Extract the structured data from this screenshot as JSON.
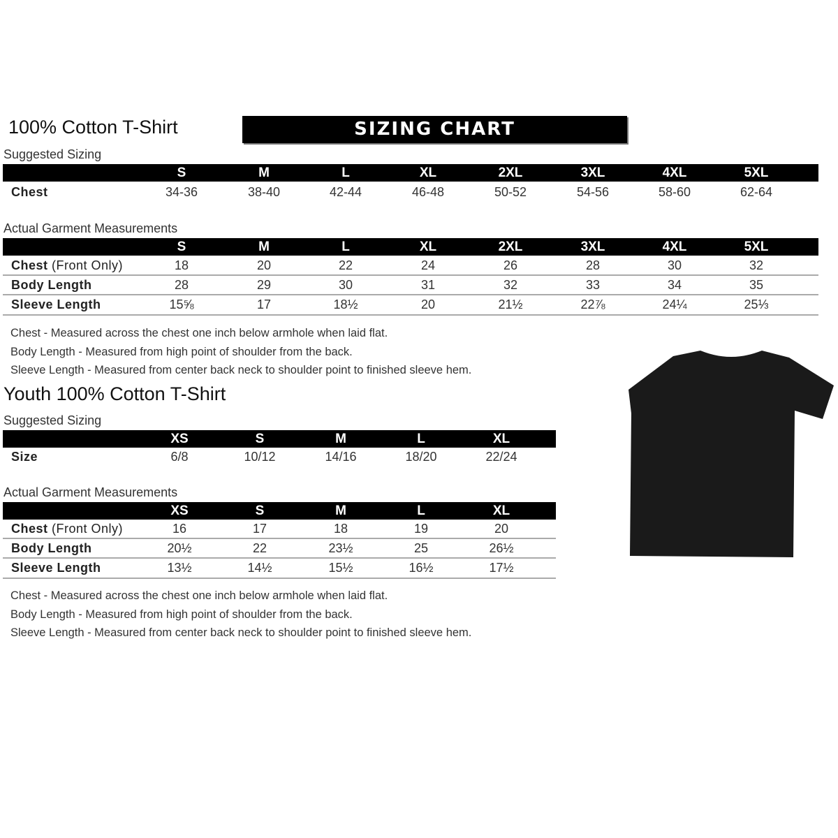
{
  "adult": {
    "title": "100% Cotton T-Shirt",
    "banner": "SIZING CHART",
    "suggested_label": "Suggested Sizing",
    "sizes": [
      "S",
      "M",
      "L",
      "XL",
      "2XL",
      "3XL",
      "4XL",
      "5XL"
    ],
    "suggested_rows": [
      {
        "label": "Chest",
        "values": [
          "34-36",
          "38-40",
          "42-44",
          "46-48",
          "50-52",
          "54-56",
          "58-60",
          "62-64"
        ]
      }
    ],
    "actual_label": "Actual Garment Measurements",
    "actual_rows": [
      {
        "label": "Chest",
        "label_suffix": " (Front Only)",
        "values": [
          "18",
          "20",
          "22",
          "24",
          "26",
          "28",
          "30",
          "32"
        ]
      },
      {
        "label": "Body Length",
        "values": [
          "28",
          "29",
          "30",
          "31",
          "32",
          "33",
          "34",
          "35"
        ]
      },
      {
        "label": "Sleeve Length",
        "values": [
          "15⅝",
          "17",
          "18½",
          "20",
          "21½",
          "22⅞",
          "24¼",
          "25⅓"
        ]
      }
    ],
    "notes": [
      "Chest - Measured across the chest one inch below armhole when laid flat.",
      "Body Length - Measured from high point of shoulder from the back.",
      "Sleeve Length - Measured from center back neck to shoulder point to finished sleeve hem."
    ]
  },
  "youth": {
    "title": "Youth 100% Cotton T-Shirt",
    "suggested_label": "Suggested Sizing",
    "sizes": [
      "XS",
      "S",
      "M",
      "L",
      "XL"
    ],
    "suggested_rows": [
      {
        "label": "Size",
        "values": [
          "6/8",
          "10/12",
          "14/16",
          "18/20",
          "22/24"
        ]
      }
    ],
    "actual_label": "Actual Garment Measurements",
    "actual_rows": [
      {
        "label": "Chest",
        "label_suffix": " (Front Only)",
        "values": [
          "16",
          "17",
          "18",
          "19",
          "20"
        ]
      },
      {
        "label": "Body Length",
        "values": [
          "20½",
          "22",
          "23½",
          "25",
          "26½"
        ]
      },
      {
        "label": "Sleeve Length",
        "values": [
          "13½",
          "14½",
          "15½",
          "16½",
          "17½"
        ]
      }
    ],
    "notes": [
      "Chest - Measured across the chest one inch below armhole when laid flat.",
      "Body Length - Measured from high point of shoulder from the back.",
      "Sleeve Length - Measured from center back neck to shoulder point to finished sleeve hem."
    ]
  },
  "image": {
    "icon": "black-tshirt-icon",
    "color": "#1a1a1a"
  }
}
